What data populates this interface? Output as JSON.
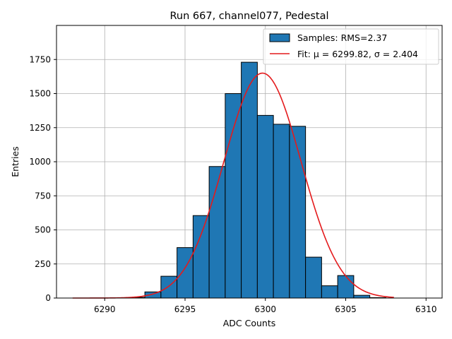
{
  "chart_data": {
    "type": "bar",
    "title": "Run 667, channel077, Pedestal",
    "xlabel": "ADC Counts",
    "ylabel": "Entries",
    "xlim": [
      6287,
      6311
    ],
    "ylim": [
      0,
      2000
    ],
    "xticks": [
      6290,
      6295,
      6300,
      6305,
      6310
    ],
    "yticks": [
      0,
      250,
      500,
      750,
      1000,
      1250,
      1500,
      1750
    ],
    "grid": true,
    "legend_position": "top-right",
    "bin_width": 1,
    "bins": [
      {
        "x": 6292,
        "value": 5
      },
      {
        "x": 6293,
        "value": 45
      },
      {
        "x": 6294,
        "value": 160
      },
      {
        "x": 6295,
        "value": 370
      },
      {
        "x": 6296,
        "value": 605
      },
      {
        "x": 6297,
        "value": 965
      },
      {
        "x": 6298,
        "value": 1500
      },
      {
        "x": 6299,
        "value": 1730
      },
      {
        "x": 6300,
        "value": 1340
      },
      {
        "x": 6301,
        "value": 1275
      },
      {
        "x": 6302,
        "value": 1260
      },
      {
        "x": 6303,
        "value": 300
      },
      {
        "x": 6304,
        "value": 90
      },
      {
        "x": 6305,
        "value": 165
      },
      {
        "x": 6306,
        "value": 20
      },
      {
        "x": 6307,
        "value": 3
      }
    ],
    "fit": {
      "mu": 6299.82,
      "sigma": 2.404,
      "amplitude": 1650,
      "x_range": [
        6288,
        6308
      ]
    },
    "series": [
      {
        "name": "Samples: RMS=2.37",
        "color": "#1f77b4"
      },
      {
        "name": "Fit: μ = 6299.82, σ = 2.404",
        "color": "#e41a1c"
      }
    ]
  }
}
